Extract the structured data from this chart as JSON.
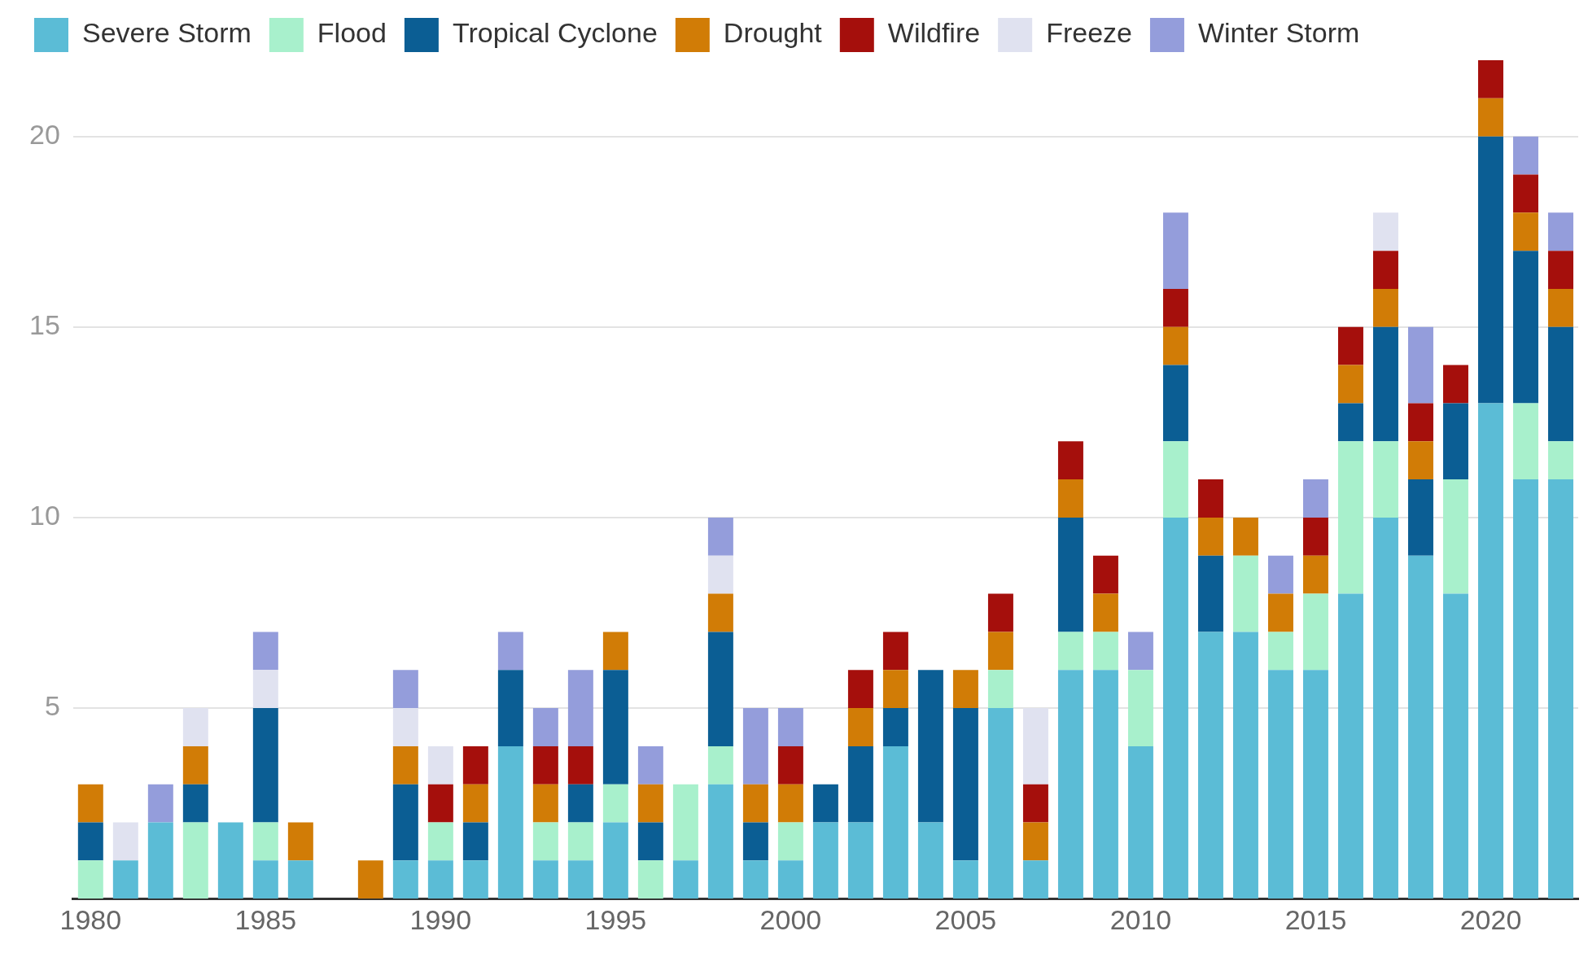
{
  "chart_data": {
    "type": "bar",
    "stacked": true,
    "categories": [
      "1980",
      null,
      null,
      null,
      null,
      "1985",
      null,
      null,
      null,
      null,
      "1990",
      null,
      null,
      null,
      null,
      "1995",
      null,
      null,
      null,
      null,
      "2000",
      null,
      null,
      null,
      null,
      "2005",
      null,
      null,
      null,
      null,
      "2010",
      null,
      null,
      null,
      null,
      "2015",
      null,
      null,
      null,
      null,
      "2020",
      null,
      null
    ],
    "series": [
      {
        "name": "Severe Storm",
        "color": "#5bbcd6",
        "values": [
          0,
          1,
          2,
          0,
          2,
          1,
          1,
          0,
          0,
          1,
          1,
          1,
          4,
          1,
          1,
          2,
          0,
          1,
          3,
          1,
          1,
          2,
          2,
          4,
          2,
          1,
          5,
          1,
          6,
          6,
          4,
          10,
          7,
          7,
          6,
          6,
          8,
          10,
          9,
          8,
          13,
          11,
          11
        ]
      },
      {
        "name": "Flood",
        "color": "#a8f0cc",
        "values": [
          1,
          0,
          0,
          2,
          0,
          1,
          0,
          0,
          0,
          0,
          1,
          0,
          0,
          1,
          1,
          1,
          1,
          2,
          1,
          0,
          1,
          0,
          0,
          0,
          0,
          0,
          1,
          0,
          1,
          1,
          2,
          2,
          0,
          2,
          1,
          2,
          4,
          2,
          0,
          3,
          0,
          2,
          1
        ]
      },
      {
        "name": "Tropical Cyclone",
        "color": "#0b5e94",
        "values": [
          1,
          0,
          0,
          1,
          0,
          3,
          0,
          0,
          0,
          2,
          0,
          1,
          2,
          0,
          1,
          3,
          1,
          0,
          3,
          1,
          0,
          1,
          2,
          1,
          4,
          4,
          0,
          0,
          3,
          0,
          0,
          2,
          2,
          0,
          0,
          0,
          1,
          3,
          2,
          2,
          7,
          4,
          3
        ]
      },
      {
        "name": "Drought",
        "color": "#d17c06",
        "values": [
          1,
          0,
          0,
          1,
          0,
          0,
          1,
          0,
          1,
          1,
          0,
          1,
          0,
          1,
          0,
          1,
          1,
          0,
          1,
          1,
          1,
          0,
          1,
          1,
          0,
          1,
          1,
          1,
          1,
          1,
          0,
          1,
          1,
          1,
          1,
          1,
          1,
          1,
          1,
          0,
          1,
          1,
          1
        ]
      },
      {
        "name": "Wildfire",
        "color": "#a50f0c",
        "values": [
          0,
          0,
          0,
          0,
          0,
          0,
          0,
          0,
          0,
          0,
          1,
          1,
          0,
          1,
          1,
          0,
          0,
          0,
          0,
          0,
          1,
          0,
          1,
          1,
          0,
          0,
          1,
          1,
          1,
          1,
          0,
          1,
          1,
          0,
          0,
          1,
          1,
          1,
          1,
          1,
          1,
          1,
          1
        ]
      },
      {
        "name": "Freeze",
        "color": "#e0e2f0",
        "values": [
          0,
          1,
          0,
          1,
          0,
          1,
          0,
          0,
          0,
          1,
          1,
          0,
          0,
          0,
          0,
          0,
          0,
          0,
          1,
          0,
          0,
          0,
          0,
          0,
          0,
          0,
          0,
          2,
          0,
          0,
          0,
          0,
          0,
          0,
          0,
          0,
          0,
          1,
          0,
          0,
          0,
          0,
          0
        ]
      },
      {
        "name": "Winter Storm",
        "color": "#949ddb",
        "values": [
          0,
          0,
          1,
          0,
          0,
          1,
          0,
          0,
          0,
          1,
          0,
          0,
          1,
          1,
          2,
          0,
          1,
          0,
          1,
          2,
          1,
          0,
          0,
          0,
          0,
          0,
          0,
          0,
          0,
          0,
          1,
          2,
          0,
          0,
          1,
          1,
          0,
          0,
          2,
          0,
          0,
          1,
          1
        ]
      }
    ],
    "ylim": [
      0,
      22
    ],
    "yticks": [
      5,
      10,
      15,
      20
    ],
    "grid": "y",
    "legend": "top left"
  }
}
